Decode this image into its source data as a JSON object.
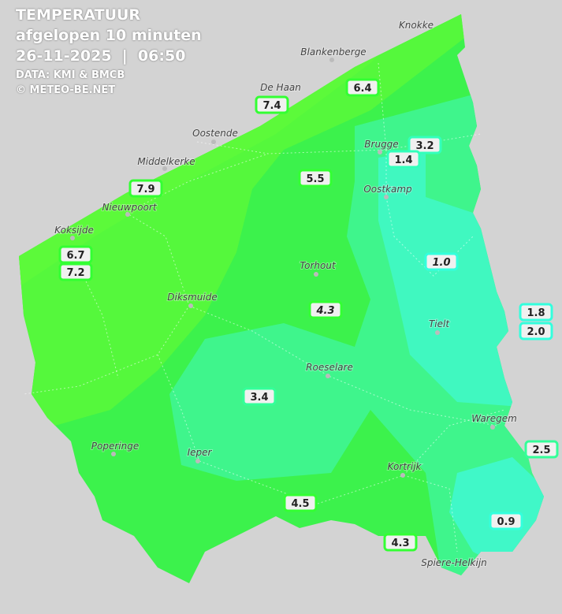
{
  "header": {
    "title": "TEMPERATUUR",
    "subtitle": "afgelopen 10 minuten",
    "datetime": "26-11-2025  |  06:50",
    "source": "DATA: KMI & BMCB",
    "copyright": "© METEO-BE.NET"
  },
  "cities": [
    {
      "name": "Knokke"
    },
    {
      "name": "Blankenberge"
    },
    {
      "name": "De Haan"
    },
    {
      "name": "Oostende"
    },
    {
      "name": "Brugge"
    },
    {
      "name": "Oostkamp"
    },
    {
      "name": "Middelkerke"
    },
    {
      "name": "Nieuwpoort"
    },
    {
      "name": "Koksijde"
    },
    {
      "name": "Torhout"
    },
    {
      "name": "Diksmuide"
    },
    {
      "name": "Tielt"
    },
    {
      "name": "Roeselare"
    },
    {
      "name": "Waregem"
    },
    {
      "name": "Poperinge"
    },
    {
      "name": "Ieper"
    },
    {
      "name": "Kortrijk"
    },
    {
      "name": "Spiere-Helkijn"
    }
  ],
  "stations": [
    {
      "label": "6.4"
    },
    {
      "label": "7.4"
    },
    {
      "label": "3.2"
    },
    {
      "label": "1.4"
    },
    {
      "label": "5.5"
    },
    {
      "label": "7.9"
    },
    {
      "label": "6.7"
    },
    {
      "label": "7.2"
    },
    {
      "label": "1.0"
    },
    {
      "label": "4.3"
    },
    {
      "label": "1.8"
    },
    {
      "label": "2.0"
    },
    {
      "label": "3.4"
    },
    {
      "label": "2.5"
    },
    {
      "label": "4.5"
    },
    {
      "label": "0.9"
    },
    {
      "label": "4.3"
    }
  ]
}
